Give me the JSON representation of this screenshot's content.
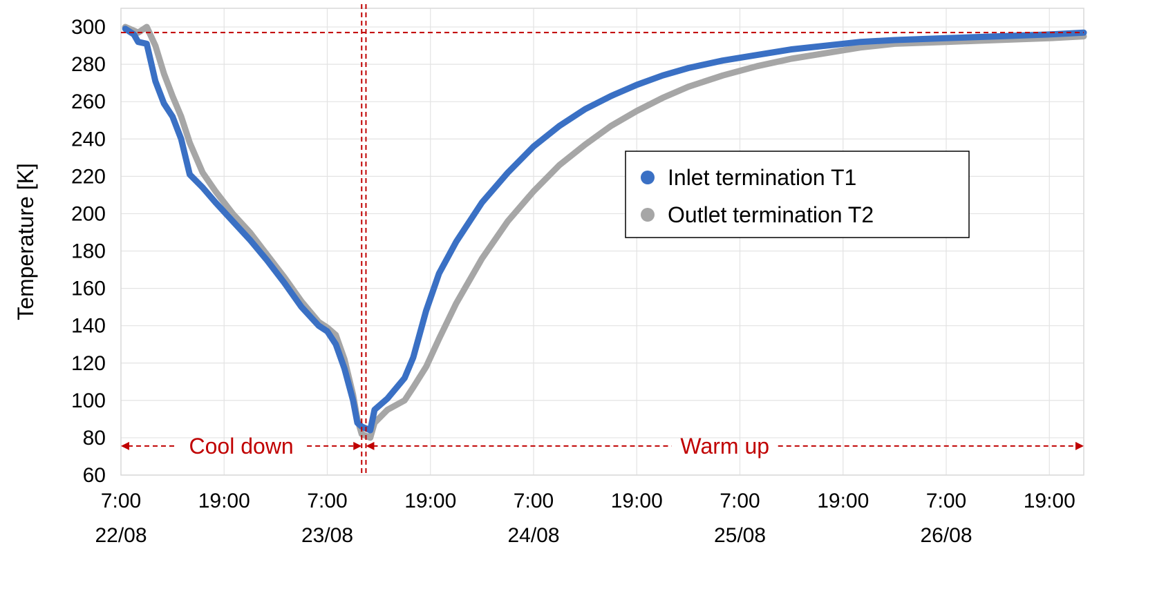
{
  "chart_data": {
    "type": "line",
    "title": "",
    "xlabel": "",
    "ylabel": "Temperature [K]",
    "ylim": [
      60,
      310
    ],
    "yticks": [
      60,
      80,
      100,
      120,
      140,
      160,
      180,
      200,
      220,
      240,
      260,
      280,
      300
    ],
    "xlim": [
      "2023-08-22 07:00",
      "2023-08-26 23:00"
    ],
    "xticks": [
      {
        "time": "22/08 07:00",
        "label": "7:00",
        "date": "22/08"
      },
      {
        "time": "22/08 19:00",
        "label": "19:00",
        "date": ""
      },
      {
        "time": "23/08 07:00",
        "label": "7:00",
        "date": "23/08"
      },
      {
        "time": "23/08 19:00",
        "label": "19:00",
        "date": ""
      },
      {
        "time": "24/08 07:00",
        "label": "7:00",
        "date": "24/08"
      },
      {
        "time": "24/08 19:00",
        "label": "19:00",
        "date": ""
      },
      {
        "time": "25/08 07:00",
        "label": "7:00",
        "date": "25/08"
      },
      {
        "time": "25/08 19:00",
        "label": "19:00",
        "date": ""
      },
      {
        "time": "26/08 07:00",
        "label": "7:00",
        "date": "26/08"
      },
      {
        "time": "26/08 19:00",
        "label": "19:00",
        "date": ""
      }
    ],
    "grid": true,
    "legend_position": "center-right",
    "series": [
      {
        "name": "Inlet termination T1",
        "color": "#3a70c4",
        "points": [
          [
            "22/08 07:30",
            299
          ],
          [
            "22/08 08:30",
            296
          ],
          [
            "22/08 09:00",
            292
          ],
          [
            "22/08 10:00",
            291
          ],
          [
            "22/08 11:00",
            271
          ],
          [
            "22/08 12:00",
            259
          ],
          [
            "22/08 13:00",
            252
          ],
          [
            "22/08 14:00",
            240
          ],
          [
            "22/08 15:00",
            221
          ],
          [
            "22/08 16:30",
            214
          ],
          [
            "22/08 18:00",
            206
          ],
          [
            "22/08 20:00",
            196
          ],
          [
            "22/08 22:00",
            186
          ],
          [
            "23/08 00:00",
            175
          ],
          [
            "23/08 02:00",
            163
          ],
          [
            "23/08 04:00",
            150
          ],
          [
            "23/08 06:00",
            140
          ],
          [
            "23/08 07:00",
            137
          ],
          [
            "23/08 08:00",
            130
          ],
          [
            "23/08 09:00",
            117
          ],
          [
            "23/08 10:00",
            100
          ],
          [
            "23/08 10:30",
            88
          ],
          [
            "23/08 11:00",
            86
          ],
          [
            "23/08 12:00",
            84
          ],
          [
            "23/08 12:30",
            95
          ],
          [
            "23/08 14:00",
            101
          ],
          [
            "23/08 16:00",
            112
          ],
          [
            "23/08 17:00",
            123
          ],
          [
            "23/08 18:30",
            148
          ],
          [
            "23/08 20:00",
            168
          ],
          [
            "23/08 22:00",
            185
          ],
          [
            "24/08 01:00",
            206
          ],
          [
            "24/08 04:00",
            222
          ],
          [
            "24/08 07:00",
            236
          ],
          [
            "24/08 10:00",
            247
          ],
          [
            "24/08 13:00",
            256
          ],
          [
            "24/08 16:00",
            263
          ],
          [
            "24/08 19:00",
            269
          ],
          [
            "24/08 22:00",
            274
          ],
          [
            "25/08 01:00",
            278
          ],
          [
            "25/08 05:00",
            282
          ],
          [
            "25/08 09:00",
            285
          ],
          [
            "25/08 13:00",
            288
          ],
          [
            "25/08 17:00",
            290
          ],
          [
            "25/08 21:00",
            292
          ],
          [
            "26/08 01:00",
            293
          ],
          [
            "26/08 07:00",
            294
          ],
          [
            "26/08 13:00",
            295
          ],
          [
            "26/08 19:00",
            296
          ],
          [
            "26/08 23:00",
            297
          ]
        ]
      },
      {
        "name": "Outlet termination T2",
        "color": "#a6a6a6",
        "points": [
          [
            "22/08 07:30",
            300
          ],
          [
            "22/08 08:30",
            298
          ],
          [
            "22/08 09:00",
            297
          ],
          [
            "22/08 10:00",
            300
          ],
          [
            "22/08 11:00",
            290
          ],
          [
            "22/08 12:00",
            275
          ],
          [
            "22/08 13:00",
            263
          ],
          [
            "22/08 14:00",
            252
          ],
          [
            "22/08 15:00",
            238
          ],
          [
            "22/08 16:30",
            222
          ],
          [
            "22/08 18:00",
            212
          ],
          [
            "22/08 20:00",
            200
          ],
          [
            "22/08 22:00",
            190
          ],
          [
            "23/08 00:00",
            178
          ],
          [
            "23/08 02:00",
            166
          ],
          [
            "23/08 04:00",
            153
          ],
          [
            "23/08 06:00",
            142
          ],
          [
            "23/08 07:00",
            139
          ],
          [
            "23/08 08:00",
            135
          ],
          [
            "23/08 09:00",
            122
          ],
          [
            "23/08 10:00",
            103
          ],
          [
            "23/08 10:30",
            90
          ],
          [
            "23/08 11:00",
            82
          ],
          [
            "23/08 12:00",
            80
          ],
          [
            "23/08 12:30",
            88
          ],
          [
            "23/08 14:00",
            95
          ],
          [
            "23/08 16:00",
            100
          ],
          [
            "23/08 17:00",
            107
          ],
          [
            "23/08 18:30",
            118
          ],
          [
            "23/08 20:00",
            133
          ],
          [
            "23/08 22:00",
            152
          ],
          [
            "24/08 01:00",
            176
          ],
          [
            "24/08 04:00",
            196
          ],
          [
            "24/08 07:00",
            212
          ],
          [
            "24/08 10:00",
            226
          ],
          [
            "24/08 13:00",
            237
          ],
          [
            "24/08 16:00",
            247
          ],
          [
            "24/08 19:00",
            255
          ],
          [
            "24/08 22:00",
            262
          ],
          [
            "25/08 01:00",
            268
          ],
          [
            "25/08 05:00",
            274
          ],
          [
            "25/08 09:00",
            279
          ],
          [
            "25/08 13:00",
            283
          ],
          [
            "25/08 17:00",
            286
          ],
          [
            "25/08 21:00",
            289
          ],
          [
            "26/08 01:00",
            291
          ],
          [
            "26/08 07:00",
            292
          ],
          [
            "26/08 13:00",
            293
          ],
          [
            "26/08 19:00",
            294
          ],
          [
            "26/08 23:00",
            295
          ]
        ]
      }
    ],
    "reference_lines": {
      "color": "#c00000",
      "horizontal_value": 297,
      "vertical_times": [
        "23/08 11:00",
        "23/08 11:30"
      ]
    },
    "annotations": [
      {
        "text": "Cool down",
        "from": "22/08 07:00",
        "to": "23/08 11:00",
        "y": 80
      },
      {
        "text": "Warm up",
        "from": "23/08 11:30",
        "to": "26/08 23:00",
        "y": 80
      }
    ]
  }
}
